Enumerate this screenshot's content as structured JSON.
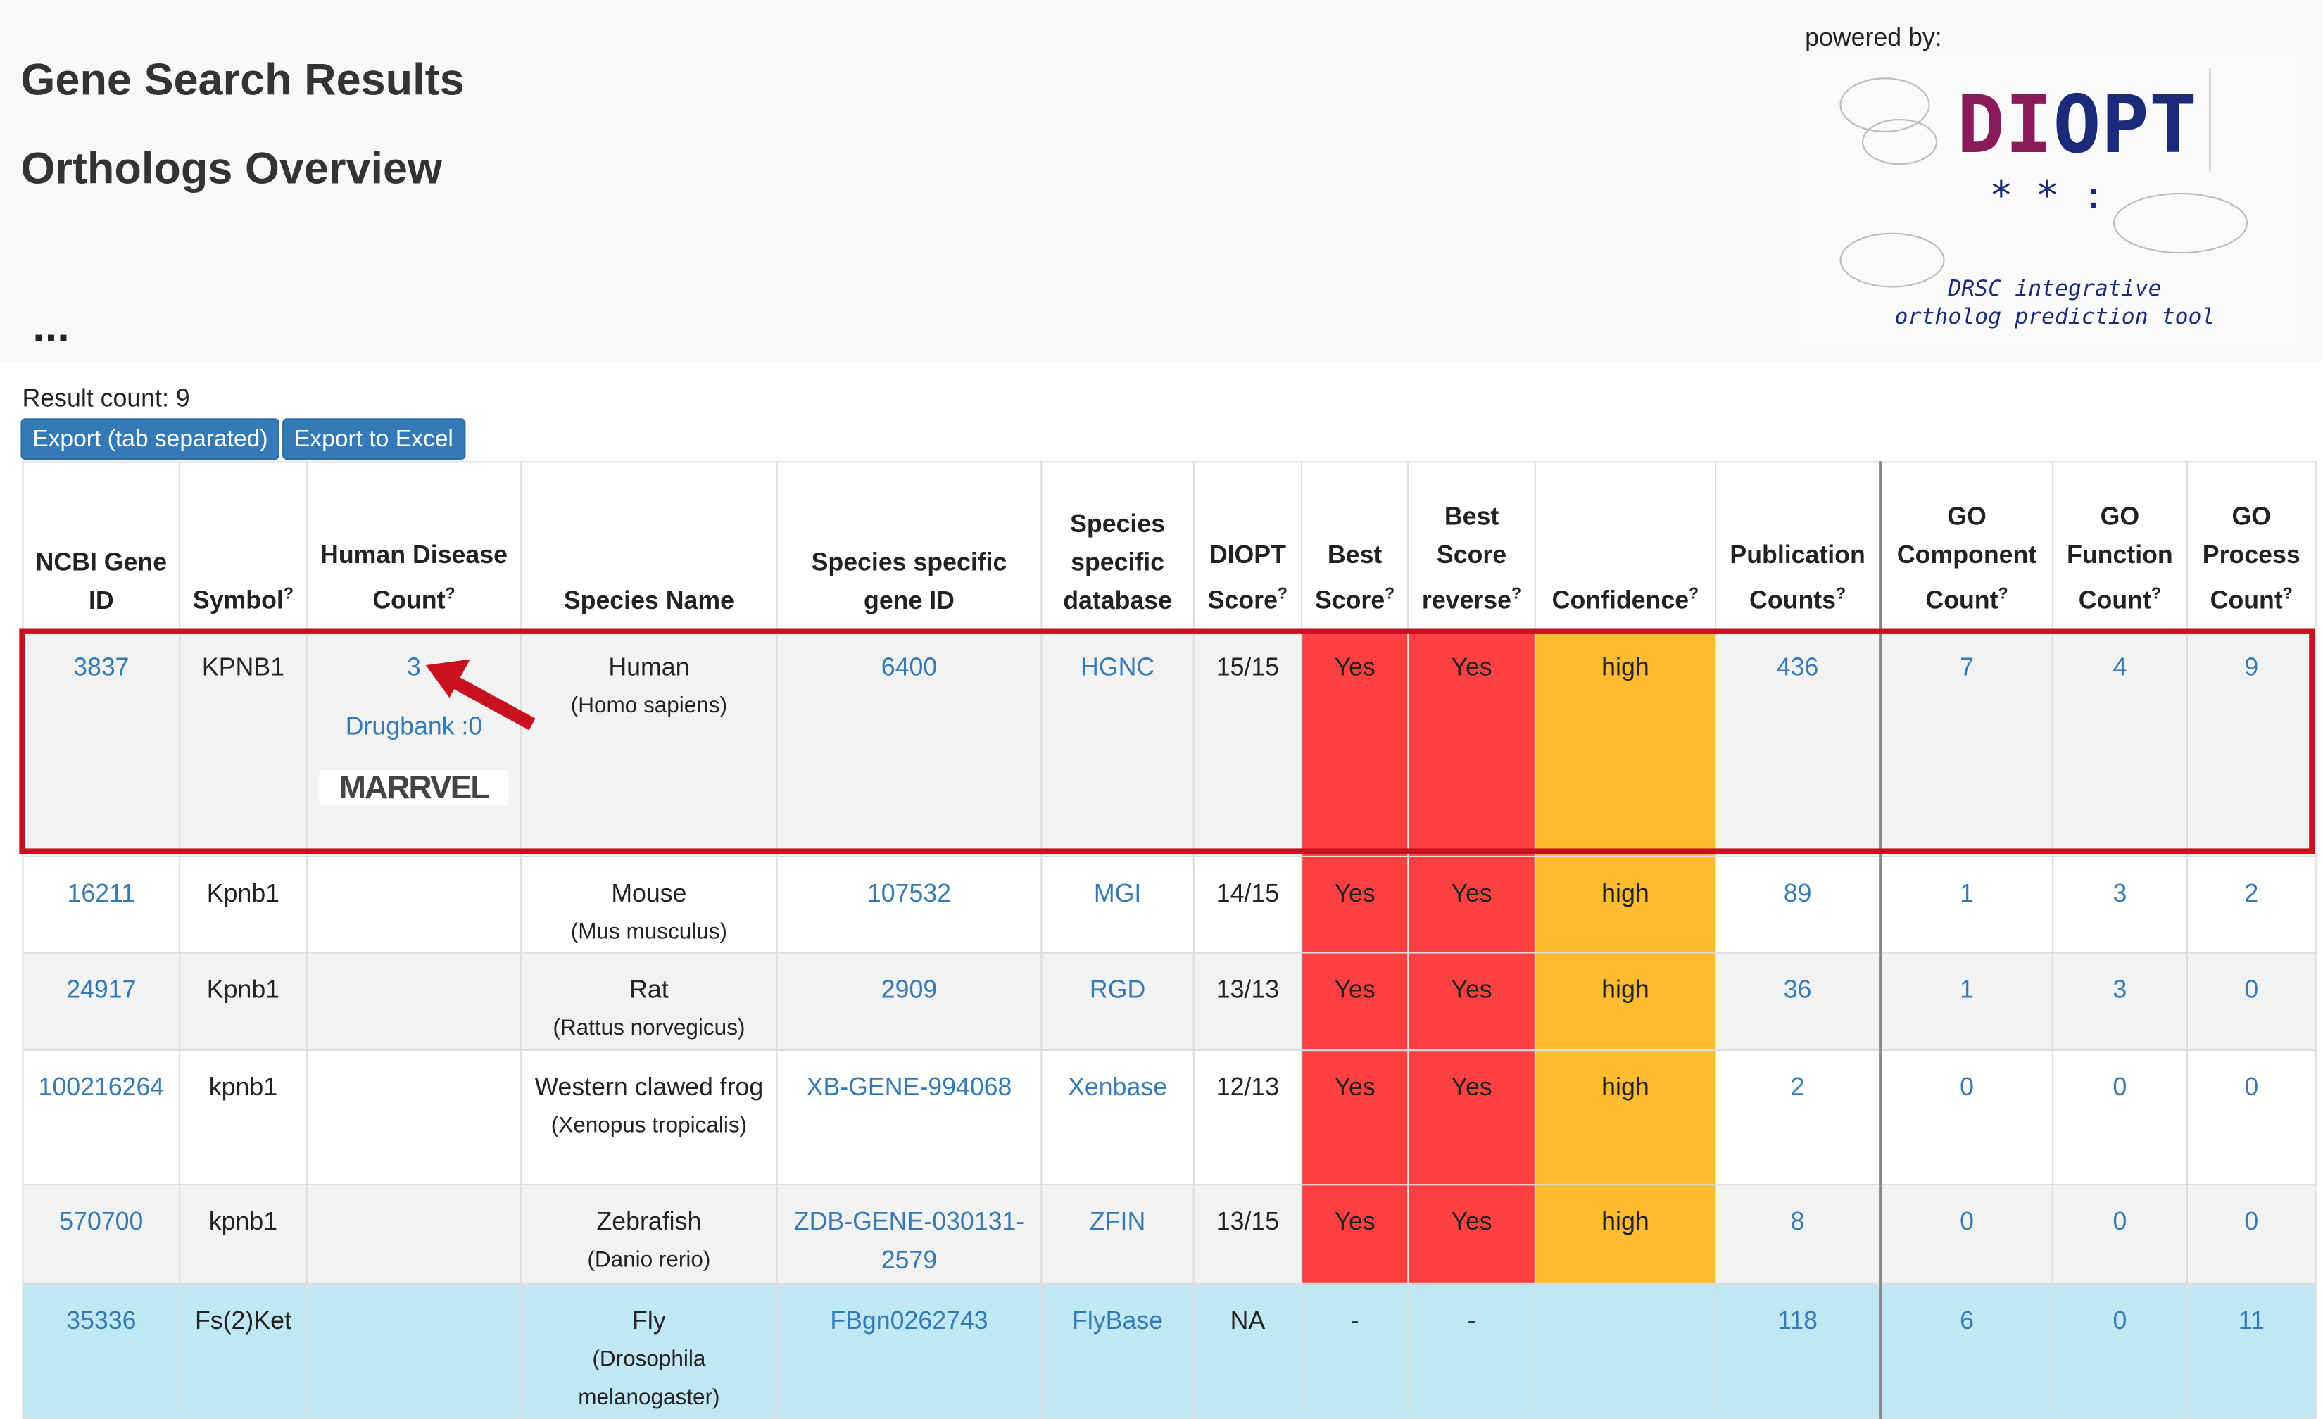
{
  "header": {
    "title": "Gene Search Results",
    "subtitle": "Orthologs Overview",
    "ellipsis": "...",
    "powered_by": "powered by:",
    "logo": {
      "name": "DIOPT",
      "tagline_1": "DRSC integrative",
      "tagline_2": "ortholog prediction tool"
    }
  },
  "result_count": "Result count: 9",
  "buttons": [
    "Export (tab separated)",
    "Export to Excel"
  ],
  "table": {
    "columns": [
      {
        "label": "NCBI Gene ID"
      },
      {
        "label": "Symbol",
        "help": "?"
      },
      {
        "label": "Human Disease Count",
        "help": "?"
      },
      {
        "label": "Species Name"
      },
      {
        "label": "Species specific gene ID"
      },
      {
        "label": "Species specific database"
      },
      {
        "label": "DIOPT Score",
        "help": "?"
      },
      {
        "label": "Best Score",
        "help": "?"
      },
      {
        "label": "Best Score reverse",
        "help": "?"
      },
      {
        "label": "Confidence",
        "help": "?"
      },
      {
        "label": "Publication Counts",
        "help": "?"
      },
      {
        "label": "GO Component Count",
        "help": "?"
      },
      {
        "label": "GO Function Count",
        "help": "?"
      },
      {
        "label": "GO Process Count",
        "help": "?"
      }
    ],
    "rows": [
      {
        "ncbi": "3837",
        "symbol": "KPNB1",
        "disease": "3",
        "drugbank": "Drugbank :0",
        "marrvel": "MARRVEL",
        "species": "Human",
        "latin": "(Homo sapiens)",
        "gene_id": "6400",
        "database": "HGNC",
        "score": "15/15",
        "best": "Yes",
        "best_rev": "Yes",
        "confidence": "high",
        "pubs": "436",
        "go_c": "7",
        "go_f": "4",
        "go_p": "9"
      },
      {
        "ncbi": "16211",
        "symbol": "Kpnb1",
        "species": "Mouse",
        "latin": "(Mus musculus)",
        "gene_id": "107532",
        "database": "MGI",
        "score": "14/15",
        "best": "Yes",
        "best_rev": "Yes",
        "confidence": "high",
        "pubs": "89",
        "go_c": "1",
        "go_f": "3",
        "go_p": "2"
      },
      {
        "ncbi": "24917",
        "symbol": "Kpnb1",
        "species": "Rat",
        "latin": "(Rattus norvegicus)",
        "gene_id": "2909",
        "database": "RGD",
        "score": "13/13",
        "best": "Yes",
        "best_rev": "Yes",
        "confidence": "high",
        "pubs": "36",
        "go_c": "1",
        "go_f": "3",
        "go_p": "0"
      },
      {
        "ncbi": "100216264",
        "symbol": "kpnb1",
        "species": "Western clawed frog",
        "latin": "(Xenopus tropicalis)",
        "gene_id": "XB-GENE-994068",
        "database": "Xenbase",
        "score": "12/13",
        "best": "Yes",
        "best_rev": "Yes",
        "confidence": "high",
        "pubs": "2",
        "go_c": "0",
        "go_f": "0",
        "go_p": "0"
      },
      {
        "ncbi": "570700",
        "symbol": "kpnb1",
        "species": "Zebrafish",
        "latin": "(Danio rerio)",
        "gene_id": "ZDB-GENE-030131-2579",
        "database": "ZFIN",
        "score": "13/15",
        "best": "Yes",
        "best_rev": "Yes",
        "confidence": "high",
        "pubs": "8",
        "go_c": "0",
        "go_f": "0",
        "go_p": "0"
      },
      {
        "ncbi": "35336",
        "symbol": "Fs(2)Ket",
        "species": "Fly",
        "latin": "(Drosophila melanogaster)",
        "gene_id": "FBgn0262743",
        "database": "FlyBase",
        "score": "NA",
        "best": "-",
        "best_rev": "-",
        "pubs": "118",
        "go_c": "6",
        "go_f": "0",
        "go_p": "11"
      }
    ]
  }
}
